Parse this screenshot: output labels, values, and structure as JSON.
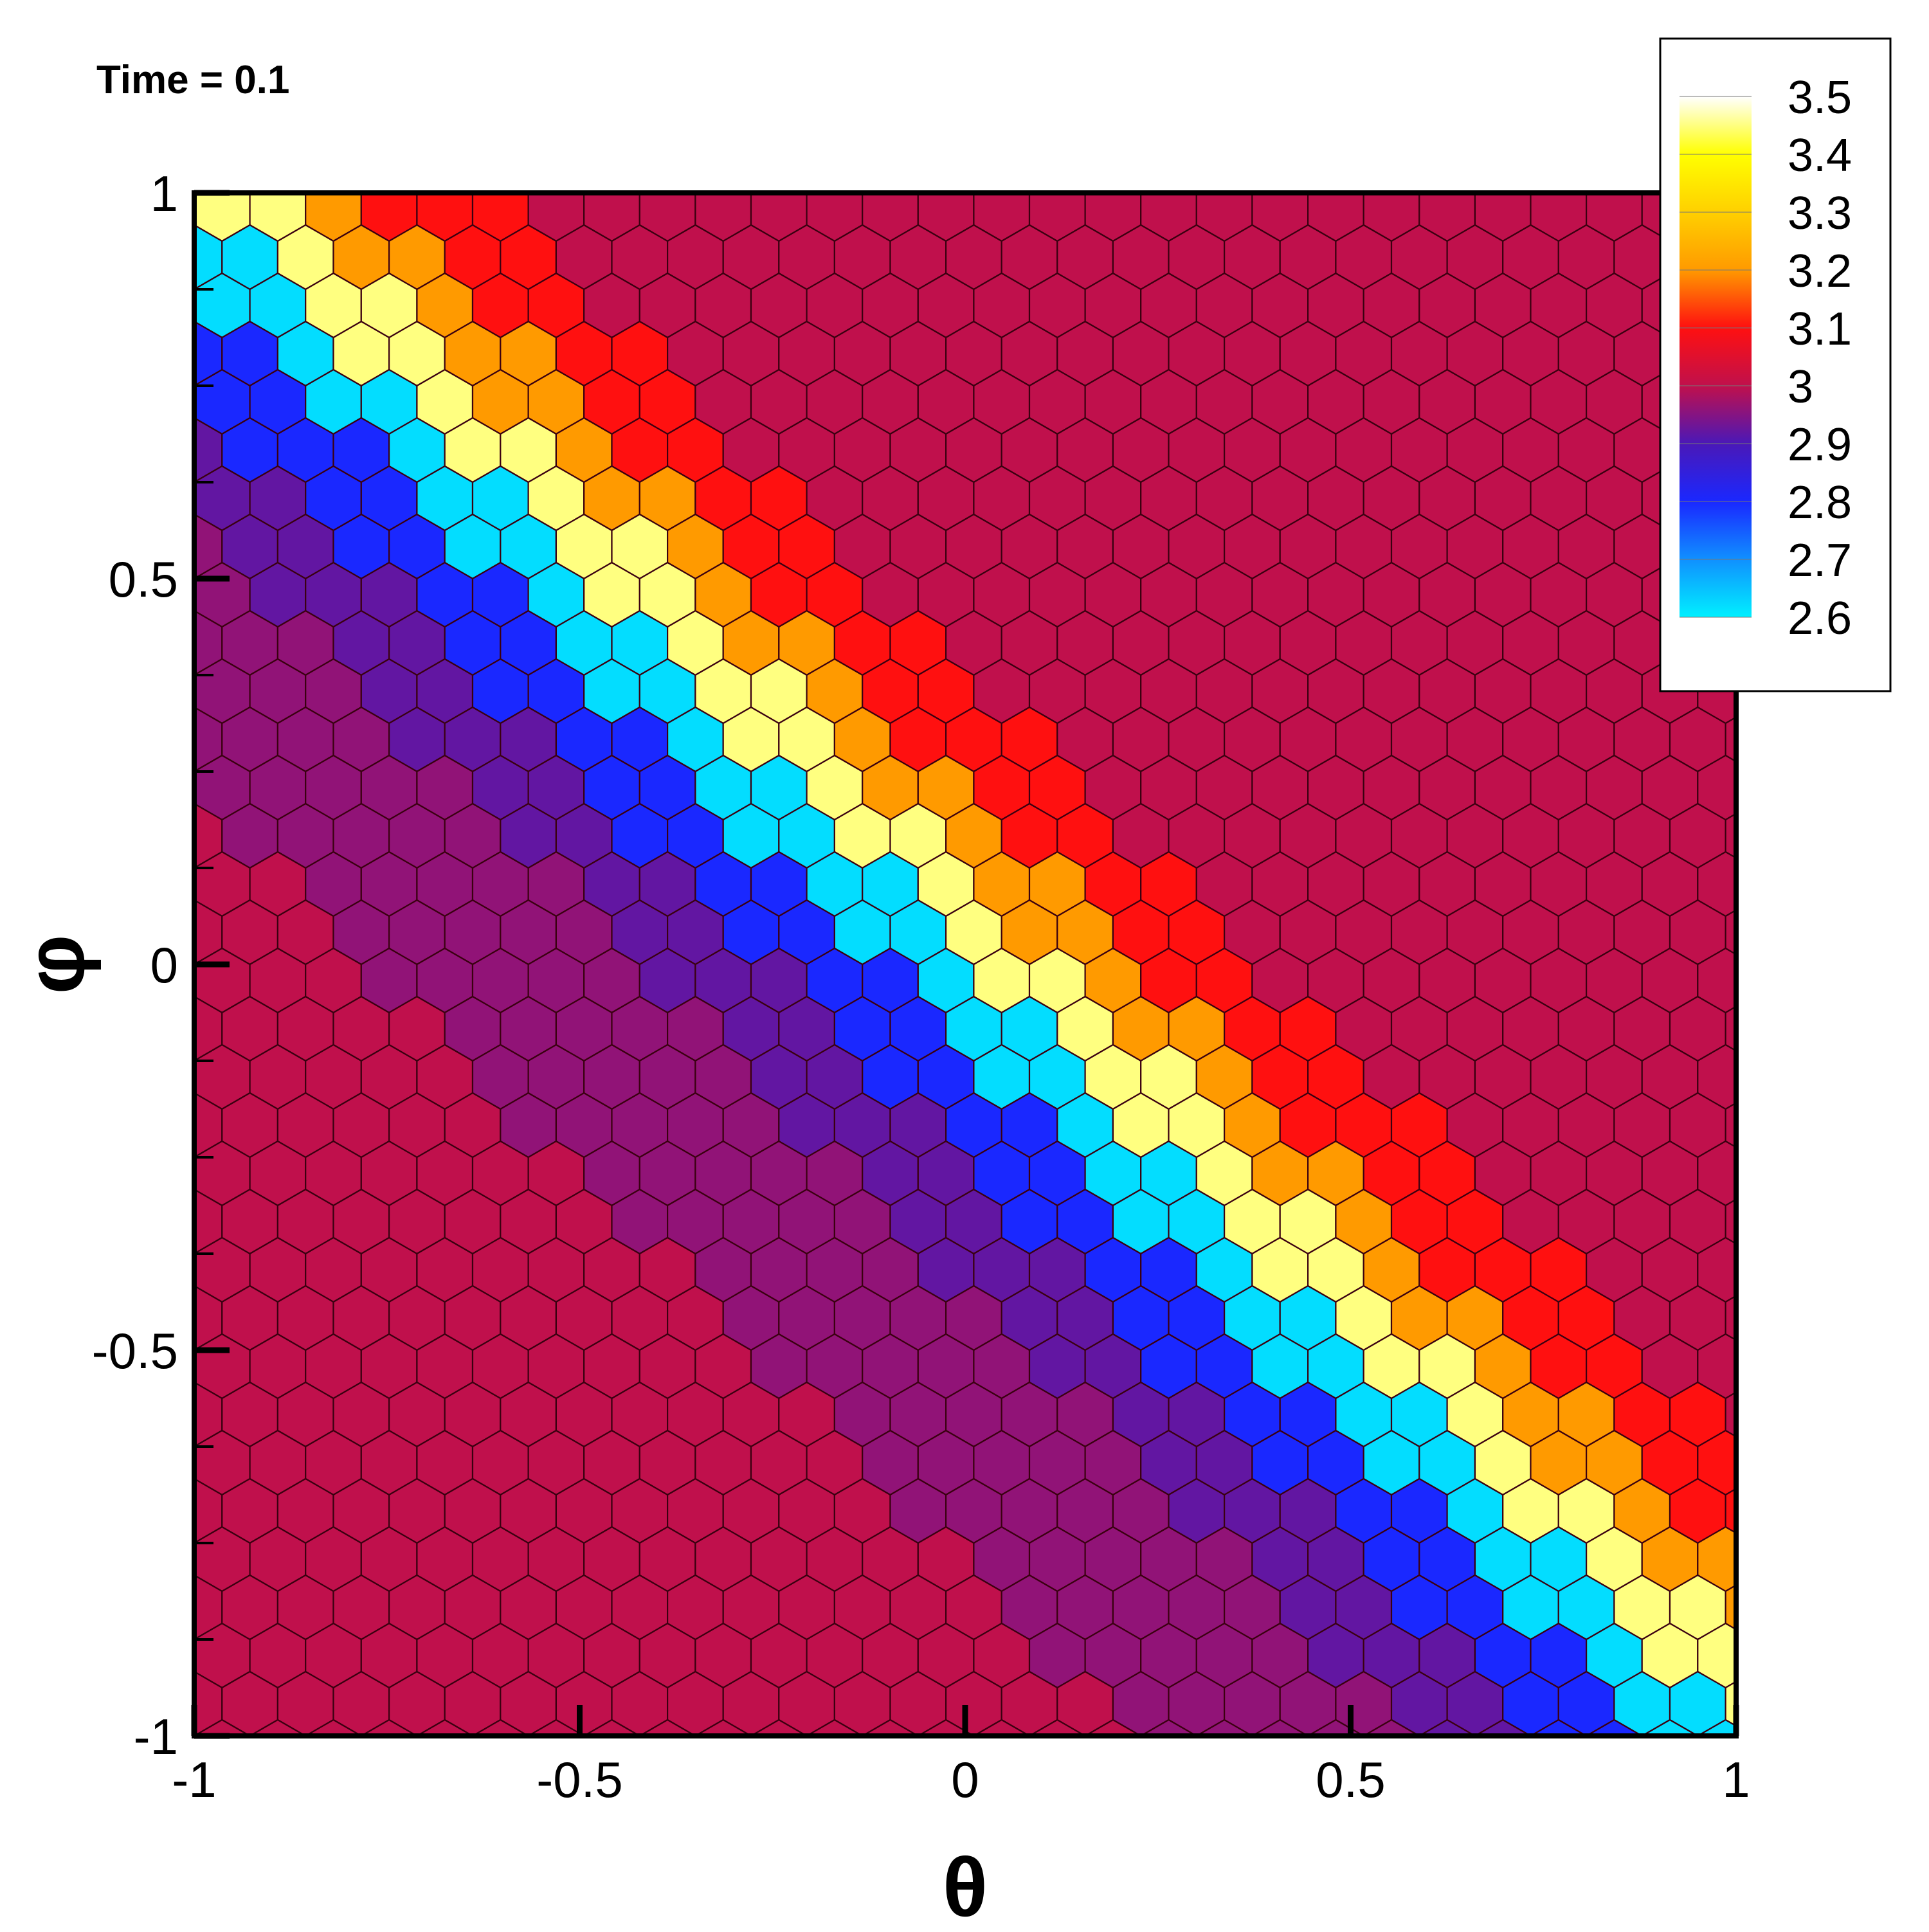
{
  "chart_data": {
    "type": "heatmap",
    "title": "Time = 0.1",
    "xlabel": "θ",
    "ylabel": "φ",
    "xlim": [
      -1,
      1
    ],
    "ylim": [
      -1,
      1
    ],
    "x_ticks": [
      "-1",
      "-0.5",
      "0",
      "0.5",
      "1"
    ],
    "y_ticks": [
      "1",
      "0.5",
      "0",
      "-0.5",
      "-1"
    ],
    "x_tick_values": [
      -1,
      -0.5,
      0,
      0.5,
      1
    ],
    "y_tick_values": [
      1,
      0.5,
      0,
      -0.5,
      -1
    ],
    "grid": "hexagonal mesh",
    "legend": {
      "placement": "top-right",
      "levels": [
        "3.5",
        "3.4",
        "3.3",
        "3.2",
        "3.1",
        "3",
        "2.9",
        "2.8",
        "2.7",
        "2.6"
      ],
      "level_values": [
        3.5,
        3.4,
        3.3,
        3.2,
        3.1,
        3.0,
        2.9,
        2.8,
        2.7,
        2.6
      ],
      "colors": [
        "#ffffff",
        "#ffff00",
        "#ffd000",
        "#ff9a00",
        "#ff1010",
        "#c0104c",
        "#4a18b8",
        "#1a28ff",
        "#1090ff",
        "#00f0ff"
      ]
    },
    "field": {
      "background_value": 3.0,
      "feature": "diagonal discontinuity along φ = -θ",
      "bands": [
        {
          "offset": 0.05,
          "value": 3.45
        },
        {
          "offset": 0.12,
          "value": 3.2
        },
        {
          "offset": 0.2,
          "value": 3.1
        },
        {
          "offset": -0.04,
          "value": 2.62
        },
        {
          "offset": -0.12,
          "value": 2.8
        },
        {
          "offset": -0.25,
          "value": 2.92
        },
        {
          "offset": -0.45,
          "value": 2.96
        }
      ]
    },
    "colors": {
      "background": "#c0104c",
      "mesh_lines": "#3a0010",
      "frame": "#000000"
    }
  }
}
